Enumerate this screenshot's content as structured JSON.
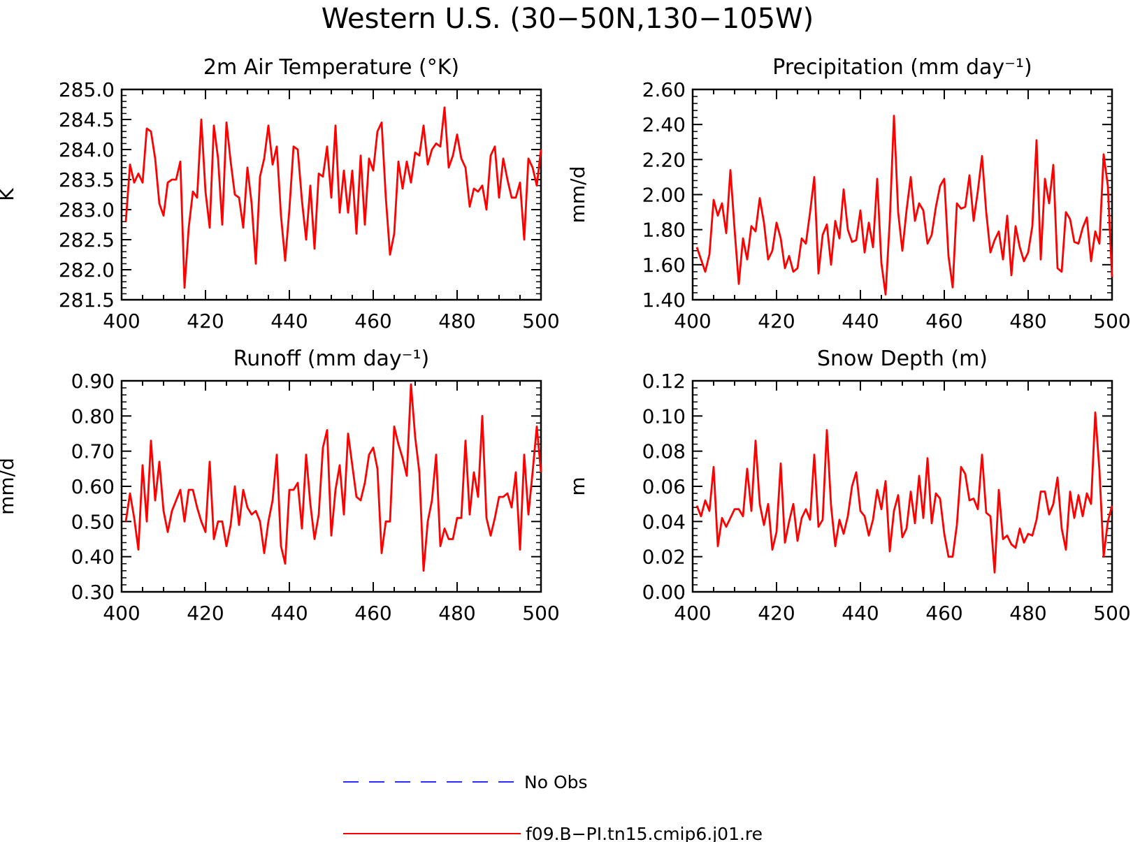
{
  "figure": {
    "title": "Western U.S. (30−50N,130−105W)",
    "legend": [
      {
        "label": "No Obs",
        "color": "#2a2aff",
        "dash": true
      },
      {
        "label": "f09.B−PI.tn15.cmip6.j01.re",
        "color": "#ff0000",
        "dash": false
      }
    ]
  },
  "chart_data": [
    {
      "type": "line",
      "title": "2m Air Temperature (°K)",
      "ylabel": "K",
      "xlabel": "",
      "xlim": [
        400,
        500
      ],
      "ylim": [
        281.5,
        285.0
      ],
      "xticks": [
        "400",
        "420",
        "440",
        "460",
        "480",
        "500"
      ],
      "yticks": [
        "281.5",
        "282.0",
        "282.5",
        "283.0",
        "283.5",
        "284.0",
        "284.5",
        "285.0"
      ],
      "series": [
        {
          "name": "f09.B−PI.tn15.cmip6.j01.re",
          "color": "#ff0000",
          "x_start": 401,
          "values": [
            282.8,
            283.75,
            283.45,
            283.6,
            283.45,
            284.35,
            284.3,
            283.85,
            283.1,
            282.9,
            283.45,
            283.5,
            283.5,
            283.8,
            281.7,
            282.7,
            283.3,
            283.2,
            284.5,
            283.3,
            282.7,
            284.4,
            283.85,
            282.75,
            284.45,
            283.8,
            283.25,
            283.2,
            282.7,
            283.7,
            283.1,
            282.1,
            283.55,
            283.85,
            284.4,
            283.75,
            284.05,
            282.9,
            282.15,
            283.0,
            284.05,
            284.0,
            283.15,
            282.5,
            283.4,
            282.35,
            283.6,
            283.55,
            284.05,
            283.2,
            284.4,
            282.95,
            283.65,
            282.95,
            283.65,
            282.6,
            283.9,
            282.75,
            283.85,
            283.65,
            284.3,
            284.45,
            283.2,
            282.25,
            282.6,
            283.8,
            283.35,
            283.8,
            283.45,
            283.95,
            283.9,
            284.4,
            283.75,
            284.0,
            284.1,
            284.05,
            284.7,
            283.7,
            283.9,
            284.25,
            283.85,
            283.7,
            283.05,
            283.35,
            283.3,
            283.4,
            283.0,
            283.9,
            284.05,
            283.2,
            283.85,
            283.5,
            283.2,
            283.2,
            283.45,
            282.5,
            283.85,
            283.7,
            283.4,
            284.0
          ]
        }
      ]
    },
    {
      "type": "line",
      "title": "Precipitation (mm day⁻¹)",
      "ylabel": "mm/d",
      "xlabel": "",
      "xlim": [
        400,
        500
      ],
      "ylim": [
        1.4,
        2.6
      ],
      "xticks": [
        "400",
        "420",
        "440",
        "460",
        "480",
        "500"
      ],
      "yticks": [
        "1.40",
        "1.60",
        "1.80",
        "2.00",
        "2.20",
        "2.40",
        "2.60"
      ],
      "series": [
        {
          "name": "f09.B−PI.tn15.cmip6.j01.re",
          "color": "#ff0000",
          "x_start": 401,
          "values": [
            1.7,
            1.63,
            1.56,
            1.66,
            1.97,
            1.88,
            1.95,
            1.78,
            2.14,
            1.8,
            1.49,
            1.75,
            1.63,
            1.82,
            1.79,
            1.98,
            1.84,
            1.63,
            1.68,
            1.84,
            1.75,
            1.58,
            1.65,
            1.56,
            1.58,
            1.75,
            1.72,
            1.9,
            2.1,
            1.55,
            1.77,
            1.83,
            1.6,
            1.85,
            1.75,
            2.03,
            1.8,
            1.73,
            1.74,
            1.91,
            1.67,
            1.84,
            1.7,
            2.09,
            1.61,
            1.43,
            1.85,
            2.45,
            1.9,
            1.68,
            1.91,
            2.1,
            1.85,
            1.95,
            1.91,
            1.72,
            1.77,
            1.93,
            2.05,
            2.09,
            1.65,
            1.47,
            1.95,
            1.92,
            1.93,
            2.11,
            1.85,
            2.02,
            2.22,
            1.9,
            1.67,
            1.74,
            1.79,
            1.63,
            1.88,
            1.54,
            1.82,
            1.7,
            1.62,
            1.67,
            1.82,
            2.31,
            1.63,
            2.09,
            1.95,
            2.17,
            1.58,
            1.56,
            1.9,
            1.86,
            1.73,
            1.72,
            1.81,
            1.87,
            1.62,
            1.79,
            1.72,
            2.23,
            2.05,
            1.53
          ]
        }
      ]
    },
    {
      "type": "line",
      "title": "Runoff (mm day⁻¹)",
      "ylabel": "mm/d",
      "xlabel": "",
      "xlim": [
        400,
        500
      ],
      "ylim": [
        0.3,
        0.9
      ],
      "xticks": [
        "400",
        "420",
        "440",
        "460",
        "480",
        "500"
      ],
      "yticks": [
        "0.30",
        "0.40",
        "0.50",
        "0.60",
        "0.70",
        "0.80",
        "0.90"
      ],
      "series": [
        {
          "name": "f09.B−PI.tn15.cmip6.j01.re",
          "color": "#ff0000",
          "x_start": 401,
          "values": [
            0.5,
            0.58,
            0.51,
            0.42,
            0.66,
            0.5,
            0.73,
            0.56,
            0.67,
            0.53,
            0.47,
            0.53,
            0.56,
            0.59,
            0.5,
            0.59,
            0.59,
            0.54,
            0.5,
            0.47,
            0.67,
            0.45,
            0.5,
            0.5,
            0.43,
            0.49,
            0.6,
            0.49,
            0.59,
            0.54,
            0.52,
            0.53,
            0.5,
            0.41,
            0.5,
            0.56,
            0.69,
            0.43,
            0.38,
            0.59,
            0.59,
            0.61,
            0.48,
            0.69,
            0.55,
            0.45,
            0.52,
            0.71,
            0.76,
            0.46,
            0.59,
            0.66,
            0.52,
            0.75,
            0.66,
            0.57,
            0.56,
            0.61,
            0.69,
            0.71,
            0.65,
            0.41,
            0.5,
            0.5,
            0.77,
            0.72,
            0.68,
            0.63,
            0.89,
            0.74,
            0.64,
            0.36,
            0.5,
            0.56,
            0.69,
            0.43,
            0.48,
            0.45,
            0.45,
            0.51,
            0.51,
            0.73,
            0.52,
            0.64,
            0.57,
            0.8,
            0.51,
            0.46,
            0.51,
            0.57,
            0.57,
            0.58,
            0.54,
            0.64,
            0.42,
            0.69,
            0.52,
            0.64,
            0.77,
            0.64
          ]
        }
      ]
    },
    {
      "type": "line",
      "title": "Snow Depth (m)",
      "ylabel": "m",
      "xlabel": "",
      "xlim": [
        400,
        500
      ],
      "ylim": [
        0.0,
        0.12
      ],
      "xticks": [
        "400",
        "420",
        "440",
        "460",
        "480",
        "500"
      ],
      "yticks": [
        "0.00",
        "0.02",
        "0.04",
        "0.06",
        "0.08",
        "0.10",
        "0.12"
      ],
      "series": [
        {
          "name": "f09.B−PI.tn15.cmip6.j01.re",
          "color": "#ff0000",
          "x_start": 401,
          "values": [
            0.049,
            0.043,
            0.052,
            0.046,
            0.071,
            0.026,
            0.042,
            0.037,
            0.042,
            0.047,
            0.047,
            0.043,
            0.07,
            0.046,
            0.086,
            0.05,
            0.038,
            0.05,
            0.024,
            0.034,
            0.073,
            0.028,
            0.04,
            0.05,
            0.029,
            0.042,
            0.047,
            0.041,
            0.078,
            0.037,
            0.041,
            0.092,
            0.049,
            0.026,
            0.041,
            0.033,
            0.043,
            0.06,
            0.068,
            0.046,
            0.043,
            0.032,
            0.041,
            0.058,
            0.047,
            0.063,
            0.023,
            0.046,
            0.055,
            0.031,
            0.036,
            0.057,
            0.039,
            0.066,
            0.042,
            0.076,
            0.039,
            0.056,
            0.053,
            0.033,
            0.02,
            0.02,
            0.038,
            0.071,
            0.067,
            0.052,
            0.053,
            0.047,
            0.078,
            0.045,
            0.043,
            0.011,
            0.058,
            0.03,
            0.032,
            0.027,
            0.025,
            0.036,
            0.028,
            0.033,
            0.032,
            0.041,
            0.057,
            0.057,
            0.044,
            0.05,
            0.065,
            0.036,
            0.024,
            0.057,
            0.042,
            0.055,
            0.043,
            0.056,
            0.05,
            0.102,
            0.069,
            0.02,
            0.04,
            0.049
          ]
        }
      ]
    }
  ]
}
